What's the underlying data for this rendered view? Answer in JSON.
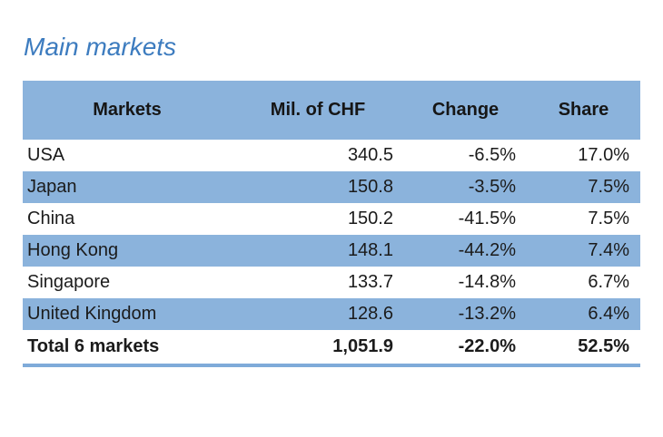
{
  "title": "Main markets",
  "colors": {
    "title_blue": "#3d7cbf",
    "band_blue": "#8bb3dc",
    "bottom_rule_blue": "#7fabd9",
    "text": "#1b1b1b"
  },
  "table": {
    "headers": [
      "Markets",
      "Mil. of CHF",
      "Change",
      "Share"
    ],
    "rows": [
      {
        "cells": [
          "USA",
          "340.5",
          "-6.5%",
          "17.0%"
        ]
      },
      {
        "cells": [
          "Japan",
          "150.8",
          "-3.5%",
          "7.5%"
        ]
      },
      {
        "cells": [
          "China",
          "150.2",
          "-41.5%",
          "7.5%"
        ]
      },
      {
        "cells": [
          "Hong Kong",
          "148.1",
          "-44.2%",
          "7.4%"
        ]
      },
      {
        "cells": [
          "Singapore",
          "133.7",
          "-14.8%",
          "6.7%"
        ]
      },
      {
        "cells": [
          "United Kingdom",
          "128.6",
          "-13.2%",
          "6.4%"
        ]
      },
      {
        "cells": [
          "Total 6 markets",
          "1,051.9",
          "-22.0%",
          "52.5%"
        ]
      }
    ]
  },
  "chart_data": {
    "type": "table",
    "title": "Main markets",
    "columns": [
      "Markets",
      "Mil. of CHF",
      "Change",
      "Share"
    ],
    "rows": [
      {
        "market": "USA",
        "mil_chf": 340.5,
        "change_pct": -6.5,
        "share_pct": 17.0
      },
      {
        "market": "Japan",
        "mil_chf": 150.8,
        "change_pct": -3.5,
        "share_pct": 7.5
      },
      {
        "market": "China",
        "mil_chf": 150.2,
        "change_pct": -41.5,
        "share_pct": 7.5
      },
      {
        "market": "Hong Kong",
        "mil_chf": 148.1,
        "change_pct": -44.2,
        "share_pct": 7.4
      },
      {
        "market": "Singapore",
        "mil_chf": 133.7,
        "change_pct": -14.8,
        "share_pct": 6.7
      },
      {
        "market": "United Kingdom",
        "mil_chf": 128.6,
        "change_pct": -13.2,
        "share_pct": 6.4
      }
    ],
    "total": {
      "market": "Total 6 markets",
      "mil_chf": 1051.9,
      "change_pct": -22.0,
      "share_pct": 52.5
    },
    "layout": {
      "banded_rows": true,
      "band_color": "#8bb3dc",
      "header_filled": true,
      "bottom_rule": true
    }
  }
}
